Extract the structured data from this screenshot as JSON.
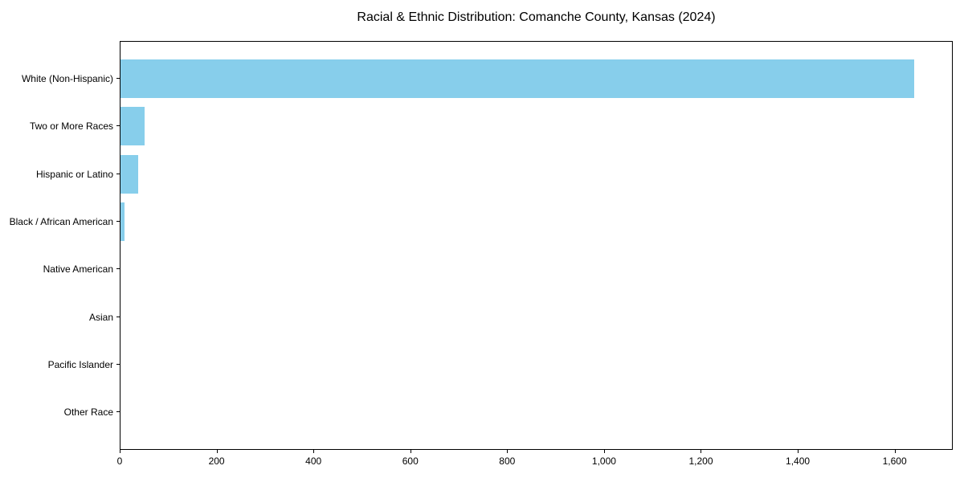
{
  "chart_data": {
    "type": "bar",
    "orientation": "horizontal",
    "title": "Racial & Ethnic Distribution: Comanche County, Kansas (2024)",
    "categories": [
      "White (Non-Hispanic)",
      "Two or More Races",
      "Hispanic or Latino",
      "Black / African American",
      "Native American",
      "Asian",
      "Pacific Islander",
      "Other Race"
    ],
    "values": [
      1638,
      50,
      36,
      8,
      0,
      0,
      0,
      0
    ],
    "xlabel": "",
    "ylabel": "",
    "xlim": [
      0,
      1720
    ],
    "x_ticks": [
      0,
      200,
      400,
      600,
      800,
      1000,
      1200,
      1400,
      1600
    ],
    "x_tick_labels": [
      "0",
      "200",
      "400",
      "600",
      "800",
      "1,000",
      "1,200",
      "1,400",
      "1,600"
    ],
    "bar_color": "#87CEEB",
    "background_color": "#ffffff",
    "axis_color": "#000000",
    "grid": false,
    "legend": null
  }
}
